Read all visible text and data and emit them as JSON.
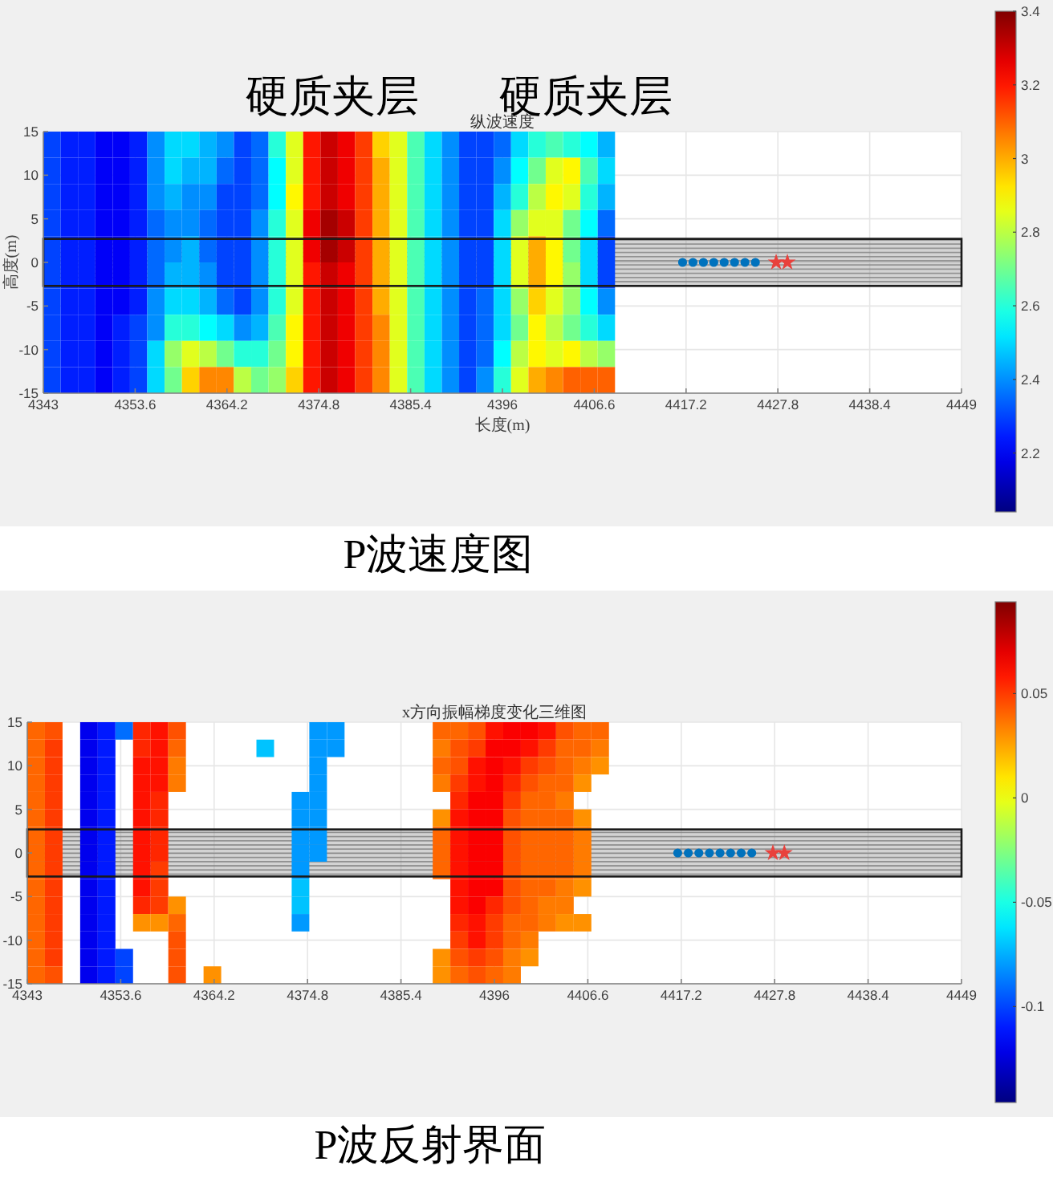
{
  "chart_data": [
    {
      "type": "heatmap",
      "title": "纵波速度",
      "xlabel": "长度(m)",
      "ylabel": "高度(m)",
      "x": [
        4344,
        4346,
        4348,
        4350,
        4352,
        4354,
        4356,
        4358,
        4360,
        4362,
        4364,
        4366,
        4368,
        4370,
        4372,
        4374,
        4376,
        4378,
        4380,
        4382,
        4384,
        4386,
        4388,
        4390,
        4392,
        4394,
        4396,
        4398,
        4400,
        4402,
        4404,
        4406,
        4408
      ],
      "cells": [
        [
          2.3,
          2.25,
          2.25,
          2.2,
          2.2,
          2.25,
          2.4,
          2.5,
          2.5,
          2.45,
          2.4,
          2.3,
          2.35,
          2.6,
          2.85,
          3.2,
          3.3,
          3.25,
          3.15,
          2.95,
          2.85,
          2.65,
          2.5,
          2.4,
          2.3,
          2.3,
          2.35,
          2.5,
          2.6,
          2.65,
          2.6,
          2.55,
          2.45
        ],
        [
          2.3,
          2.25,
          2.25,
          2.2,
          2.2,
          2.25,
          2.4,
          2.5,
          2.45,
          2.45,
          2.35,
          2.3,
          2.35,
          2.55,
          2.85,
          3.2,
          3.3,
          3.25,
          3.15,
          3,
          2.85,
          2.65,
          2.5,
          2.4,
          2.3,
          2.3,
          2.4,
          2.55,
          2.7,
          2.85,
          2.9,
          2.65,
          2.5
        ],
        [
          2.3,
          2.25,
          2.25,
          2.2,
          2.2,
          2.25,
          2.4,
          2.45,
          2.4,
          2.4,
          2.3,
          2.3,
          2.35,
          2.55,
          2.9,
          3.2,
          3.3,
          3.25,
          3.15,
          3,
          2.85,
          2.65,
          2.5,
          2.4,
          2.3,
          2.3,
          2.45,
          2.6,
          2.8,
          2.9,
          2.85,
          2.6,
          2.45
        ],
        [
          2.3,
          2.25,
          2.25,
          2.2,
          2.2,
          2.25,
          2.35,
          2.4,
          2.4,
          2.35,
          2.3,
          2.3,
          2.4,
          2.6,
          2.85,
          3.25,
          3.35,
          3.3,
          3.15,
          3,
          2.85,
          2.65,
          2.5,
          2.4,
          2.3,
          2.3,
          2.5,
          2.75,
          2.85,
          2.85,
          2.7,
          2.55,
          2.35
        ],
        [
          2.3,
          2.25,
          2.25,
          2.2,
          2.2,
          2.25,
          2.35,
          2.4,
          2.45,
          2.35,
          2.3,
          2.3,
          2.4,
          2.6,
          2.85,
          3.25,
          3.35,
          3.3,
          3.15,
          3,
          2.85,
          2.65,
          2.5,
          2.4,
          2.3,
          2.3,
          2.5,
          2.85,
          3,
          2.9,
          2.7,
          2.5,
          2.3
        ],
        [
          2.3,
          2.25,
          2.25,
          2.2,
          2.2,
          2.25,
          2.35,
          2.45,
          2.45,
          2.4,
          2.3,
          2.3,
          2.4,
          2.6,
          2.85,
          3.2,
          3.3,
          3.25,
          3.15,
          3,
          2.85,
          2.65,
          2.5,
          2.4,
          2.3,
          2.3,
          2.5,
          2.85,
          3,
          2.9,
          2.75,
          2.5,
          2.3
        ],
        [
          2.3,
          2.25,
          2.25,
          2.2,
          2.2,
          2.25,
          2.4,
          2.5,
          2.5,
          2.45,
          2.35,
          2.3,
          2.4,
          2.6,
          2.85,
          3.2,
          3.3,
          3.25,
          3.15,
          3,
          2.85,
          2.65,
          2.5,
          2.4,
          2.3,
          2.35,
          2.5,
          2.75,
          2.95,
          2.85,
          2.75,
          2.55,
          2.4
        ],
        [
          2.3,
          2.25,
          2.25,
          2.2,
          2.25,
          2.3,
          2.4,
          2.6,
          2.6,
          2.55,
          2.5,
          2.4,
          2.45,
          2.65,
          2.9,
          3.2,
          3.3,
          3.25,
          3.15,
          3.05,
          2.85,
          2.65,
          2.5,
          2.4,
          2.3,
          2.35,
          2.5,
          2.7,
          2.9,
          2.8,
          2.7,
          2.6,
          2.5
        ],
        [
          2.3,
          2.25,
          2.25,
          2.2,
          2.25,
          2.3,
          2.5,
          2.75,
          2.85,
          2.8,
          2.7,
          2.6,
          2.6,
          2.7,
          2.9,
          3.2,
          3.3,
          3.25,
          3.15,
          3.05,
          2.85,
          2.65,
          2.5,
          2.4,
          2.3,
          2.35,
          2.55,
          2.8,
          2.9,
          2.85,
          2.9,
          2.8,
          2.75
        ],
        [
          2.3,
          2.25,
          2.25,
          2.2,
          2.25,
          2.3,
          2.5,
          2.7,
          2.95,
          3.05,
          3.05,
          2.8,
          2.7,
          2.75,
          2.95,
          3.2,
          3.3,
          3.25,
          3.15,
          3.05,
          2.85,
          2.65,
          2.5,
          2.4,
          2.3,
          2.4,
          2.6,
          2.85,
          3,
          3.05,
          3.1,
          3.1,
          3.1
        ]
      ],
      "clim": [
        2.04,
        3.4
      ],
      "cticks": [
        2.2,
        2.4,
        2.6,
        2.8,
        3,
        3.2,
        3.4
      ],
      "xlim": [
        4343,
        4449
      ],
      "xticks": [
        4343,
        4353.6,
        4364.2,
        4374.8,
        4385.4,
        4396,
        4406.6,
        4417.2,
        4427.8,
        4438.4,
        4449
      ],
      "ylim": [
        -15,
        15
      ],
      "yticks": [
        -15,
        -10,
        -5,
        0,
        5,
        10,
        15
      ],
      "grid": true,
      "bands": [
        {
          "axis": "y",
          "from": -2.7,
          "to": 2.7,
          "color": "#808080"
        }
      ],
      "series": [
        {
          "type": "scatter",
          "x": [
            4416.8,
            4418,
            4419.2,
            4420.4,
            4421.6,
            4422.8,
            4424,
            4425.2
          ],
          "values": [
            0,
            0,
            0,
            0,
            0,
            0,
            0,
            0
          ],
          "color": "#0072bd",
          "marker": "circle"
        },
        {
          "type": "scatter",
          "x": [
            4427.6,
            4428.9
          ],
          "values": [
            0,
            0
          ],
          "color": "#e8413c",
          "marker": "star"
        }
      ],
      "annotations": [
        "硬质夹层",
        "硬质夹层",
        "P波速度图"
      ]
    },
    {
      "type": "heatmap",
      "title": "x方向振幅梯度变化三维图",
      "x": [
        4344,
        4346,
        4348,
        4350,
        4352,
        4354,
        4356,
        4358,
        4360,
        4362,
        4364,
        4366,
        4368,
        4370,
        4372,
        4374,
        4376,
        4378,
        4380,
        4382,
        4384,
        4386,
        4388,
        4390,
        4392,
        4394,
        4396,
        4398,
        4400,
        4402,
        4404,
        4406,
        4408
      ],
      "cells": [
        [
          0.04,
          0.045,
          null,
          -0.12,
          -0.11,
          -0.09,
          0.055,
          0.06,
          0.045,
          null,
          null,
          null,
          null,
          null,
          null,
          null,
          -0.08,
          -0.08,
          null,
          null,
          null,
          null,
          null,
          0.04,
          0.04,
          0.045,
          0.06,
          0.065,
          0.065,
          0.06,
          0.045,
          0.04,
          0.04
        ],
        [
          0.04,
          0.05,
          null,
          -0.12,
          -0.11,
          null,
          0.055,
          0.06,
          0.04,
          null,
          null,
          null,
          null,
          -0.07,
          null,
          null,
          -0.08,
          -0.08,
          null,
          null,
          null,
          null,
          null,
          0.035,
          0.045,
          0.05,
          0.065,
          0.065,
          0.06,
          0.05,
          0.04,
          0.04,
          0.035
        ],
        [
          0.04,
          0.05,
          null,
          -0.12,
          -0.11,
          null,
          0.06,
          0.06,
          0.035,
          null,
          null,
          null,
          null,
          null,
          null,
          null,
          -0.08,
          null,
          null,
          null,
          null,
          null,
          null,
          0.04,
          0.045,
          0.06,
          0.065,
          0.06,
          0.05,
          0.045,
          0.04,
          0.035,
          0.03
        ],
        [
          0.04,
          0.05,
          null,
          -0.12,
          -0.11,
          null,
          0.06,
          0.06,
          0.035,
          null,
          null,
          null,
          null,
          null,
          null,
          null,
          -0.08,
          null,
          null,
          null,
          null,
          null,
          null,
          0.035,
          0.05,
          0.06,
          0.065,
          0.055,
          0.045,
          0.04,
          0.04,
          0.03,
          null
        ],
        [
          0.04,
          0.05,
          null,
          -0.12,
          -0.11,
          null,
          0.06,
          0.055,
          null,
          null,
          null,
          null,
          null,
          null,
          null,
          -0.08,
          -0.08,
          null,
          null,
          null,
          null,
          null,
          null,
          null,
          0.055,
          0.065,
          0.065,
          0.05,
          0.04,
          0.04,
          0.035,
          null,
          null
        ],
        [
          0.04,
          0.05,
          null,
          -0.12,
          -0.11,
          null,
          0.06,
          0.055,
          null,
          null,
          null,
          null,
          null,
          null,
          null,
          -0.08,
          -0.08,
          null,
          null,
          null,
          null,
          null,
          null,
          0.03,
          0.06,
          0.065,
          0.065,
          0.045,
          0.04,
          0.04,
          0.04,
          0.03,
          null
        ],
        [
          0.04,
          0.05,
          null,
          -0.12,
          -0.11,
          null,
          0.06,
          0.055,
          null,
          null,
          null,
          null,
          null,
          null,
          null,
          -0.08,
          -0.08,
          null,
          null,
          null,
          null,
          null,
          null,
          0.04,
          0.06,
          0.065,
          0.065,
          0.045,
          0.04,
          0.04,
          0.04,
          0.035,
          null
        ],
        [
          0.04,
          0.05,
          null,
          -0.12,
          -0.11,
          null,
          0.06,
          0.055,
          null,
          null,
          null,
          null,
          null,
          null,
          null,
          -0.08,
          -0.08,
          null,
          null,
          null,
          null,
          null,
          null,
          0.04,
          0.06,
          0.065,
          0.065,
          0.045,
          0.04,
          0.04,
          0.04,
          0.035,
          null
        ],
        [
          0.04,
          0.05,
          null,
          -0.12,
          -0.11,
          null,
          0.06,
          0.05,
          null,
          null,
          null,
          null,
          null,
          null,
          null,
          -0.08,
          null,
          null,
          null,
          null,
          null,
          null,
          null,
          0.04,
          0.06,
          0.065,
          0.065,
          0.045,
          0.04,
          0.04,
          0.04,
          0.035,
          null
        ],
        [
          0.04,
          0.05,
          null,
          -0.12,
          -0.11,
          null,
          0.06,
          0.05,
          null,
          null,
          null,
          null,
          null,
          null,
          null,
          -0.07,
          null,
          null,
          null,
          null,
          null,
          null,
          null,
          null,
          0.06,
          0.065,
          0.065,
          0.045,
          0.04,
          0.04,
          0.035,
          0.03,
          null
        ],
        [
          0.04,
          0.05,
          null,
          -0.12,
          -0.11,
          null,
          0.055,
          0.05,
          0.03,
          null,
          null,
          null,
          null,
          null,
          null,
          -0.07,
          null,
          null,
          null,
          null,
          null,
          null,
          null,
          null,
          0.06,
          0.065,
          0.055,
          0.045,
          0.04,
          0.035,
          0.035,
          null,
          null
        ],
        [
          0.04,
          0.05,
          null,
          -0.12,
          -0.11,
          null,
          0.03,
          0.03,
          0.04,
          null,
          null,
          null,
          null,
          null,
          null,
          -0.08,
          null,
          null,
          null,
          null,
          null,
          null,
          null,
          null,
          0.055,
          0.06,
          0.05,
          0.04,
          0.04,
          0.035,
          0.03,
          0.03,
          null
        ],
        [
          0.04,
          0.05,
          null,
          -0.12,
          -0.11,
          null,
          null,
          null,
          0.045,
          null,
          null,
          null,
          null,
          null,
          null,
          null,
          null,
          null,
          null,
          null,
          null,
          null,
          null,
          null,
          0.05,
          0.06,
          0.05,
          0.04,
          0.035,
          null,
          null,
          null,
          null
        ],
        [
          0.04,
          0.05,
          null,
          -0.12,
          -0.11,
          -0.1,
          null,
          null,
          0.045,
          null,
          null,
          null,
          null,
          null,
          null,
          null,
          null,
          null,
          null,
          null,
          null,
          null,
          null,
          0.03,
          0.045,
          0.05,
          0.045,
          0.035,
          0.03,
          null,
          null,
          null,
          null
        ],
        [
          0.04,
          0.045,
          null,
          -0.12,
          -0.11,
          -0.1,
          null,
          null,
          0.045,
          null,
          0.03,
          null,
          null,
          null,
          null,
          null,
          null,
          null,
          null,
          null,
          null,
          null,
          null,
          0.03,
          0.04,
          0.045,
          0.04,
          0.035,
          null,
          null,
          null,
          null,
          null
        ]
      ],
      "clim": [
        -0.146,
        0.094
      ],
      "cticks": [
        -0.1,
        -0.05,
        0,
        0.05
      ],
      "xlim": [
        4343,
        4449
      ],
      "xticks": [
        4343,
        4353.6,
        4364.2,
        4374.8,
        4385.4,
        4396,
        4406.6,
        4417.2,
        4427.8,
        4438.4,
        4449
      ],
      "ylim": [
        -15,
        15
      ],
      "yticks": [
        -15,
        -10,
        -5,
        0,
        5,
        10,
        15
      ],
      "grid": true,
      "bands": [
        {
          "axis": "y",
          "from": -2.7,
          "to": 2.7,
          "color": "#808080"
        }
      ],
      "series": [
        {
          "type": "scatter",
          "x": [
            4416.8,
            4418,
            4419.2,
            4420.4,
            4421.6,
            4422.8,
            4424,
            4425.2
          ],
          "values": [
            0,
            0,
            0,
            0,
            0,
            0,
            0,
            0
          ],
          "color": "#0072bd",
          "marker": "circle"
        },
        {
          "type": "scatter",
          "x": [
            4427.6,
            4428.9
          ],
          "values": [
            0,
            0
          ],
          "color": "#e8413c",
          "marker": "star"
        }
      ],
      "annotations": [
        "P波反射界面"
      ]
    }
  ]
}
